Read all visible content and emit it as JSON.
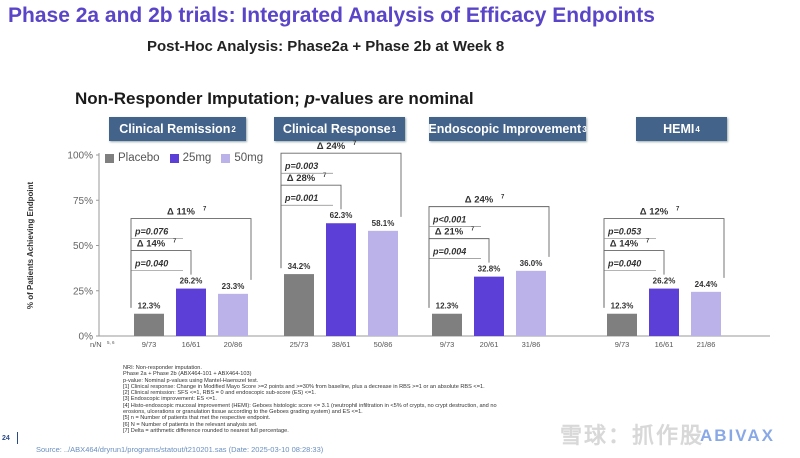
{
  "header": {
    "title": "Phase 2a and 2b trials: Integrated Analysis of Efficacy Endpoints",
    "subtitle": "Post-Hoc Analysis: Phase2a + Phase 2b at Week 8",
    "section_title_a": "Non-Responder Imputation; ",
    "section_title_p": "p",
    "section_title_b": "-values are nominal"
  },
  "endpoints": [
    {
      "label": "Clinical Remission",
      "sup": "2"
    },
    {
      "label": "Clinical Response",
      "sup": "1"
    },
    {
      "label": "Endoscopic Improvement",
      "sup": "3"
    },
    {
      "label": "HEMI",
      "sup": "4"
    }
  ],
  "legend": [
    "Placebo",
    "25mg",
    "50mg"
  ],
  "colors": {
    "Placebo": "#7f7f7f",
    "25mg": "#5b3fd6",
    "50mg": "#bcb2ea",
    "pill": "#44638a",
    "title": "#5a45c9"
  },
  "chart_data": {
    "type": "bar",
    "ylabel": "% of Patients Achieving Endpoint",
    "ylim": [
      0,
      100
    ],
    "yticks": [
      "0%",
      "25%",
      "50%",
      "75%",
      "100%"
    ],
    "n_axis_label": "n/N",
    "n_axis_sup": "5, 6",
    "groups": [
      {
        "name": "Clinical Remission",
        "bars": [
          {
            "series": "Placebo",
            "value": 12.3,
            "label": "12.3%",
            "n": "9/73"
          },
          {
            "series": "25mg",
            "value": 26.2,
            "label": "26.2%",
            "n": "16/61"
          },
          {
            "series": "50mg",
            "value": 23.3,
            "label": "23.3%",
            "n": "20/86"
          }
        ],
        "comparisons": [
          {
            "to": 1,
            "delta": "Δ 14%",
            "sup": "7",
            "p": "p=0.040"
          },
          {
            "to": 2,
            "delta": "Δ 11%",
            "sup": "7",
            "p": "p=0.076"
          }
        ]
      },
      {
        "name": "Clinical Response",
        "bars": [
          {
            "series": "Placebo",
            "value": 34.2,
            "label": "34.2%",
            "n": "25/73"
          },
          {
            "series": "25mg",
            "value": 62.3,
            "label": "62.3%",
            "n": "38/61"
          },
          {
            "series": "50mg",
            "value": 58.1,
            "label": "58.1%",
            "n": "50/86"
          }
        ],
        "comparisons": [
          {
            "to": 1,
            "delta": "Δ 28%",
            "sup": "7",
            "p": "p=0.001"
          },
          {
            "to": 2,
            "delta": "Δ 24%",
            "sup": "7",
            "p": "p=0.003"
          }
        ]
      },
      {
        "name": "Endoscopic Improvement",
        "bars": [
          {
            "series": "Placebo",
            "value": 12.3,
            "label": "12.3%",
            "n": "9/73"
          },
          {
            "series": "25mg",
            "value": 32.8,
            "label": "32.8%",
            "n": "20/61"
          },
          {
            "series": "50mg",
            "value": 36.0,
            "label": "36.0%",
            "n": "31/86"
          }
        ],
        "comparisons": [
          {
            "to": 1,
            "delta": "Δ 21%",
            "sup": "7",
            "p": "p=0.004"
          },
          {
            "to": 2,
            "delta": "Δ 24%",
            "sup": "7",
            "p": "p<0.001"
          }
        ]
      },
      {
        "name": "HEMI",
        "bars": [
          {
            "series": "Placebo",
            "value": 12.3,
            "label": "12.3%",
            "n": "9/73"
          },
          {
            "series": "25mg",
            "value": 26.2,
            "label": "26.2%",
            "n": "16/61"
          },
          {
            "series": "50mg",
            "value": 24.4,
            "label": "24.4%",
            "n": "21/86"
          }
        ],
        "comparisons": [
          {
            "to": 1,
            "delta": "Δ 14%",
            "sup": "7",
            "p": "p=0.040"
          },
          {
            "to": 2,
            "delta": "Δ 12%",
            "sup": "7",
            "p": "p=0.053"
          }
        ]
      }
    ]
  },
  "footnotes": [
    "NRI: Non-responder imputation.",
    "Phase 2a + Phase 2b (ABX464-101 + ABX464-103)",
    "p-value: Nominal p-values using Mantel-Haenszel test.",
    "[1]  Clinical response: Change in Modified Mayo Score >=2 points and >=30% from baseline, plus a decrease in RBS >=1 or an absolute RBS <=1.",
    "[2]  Clinical remission: SFS <=1, RBS = 0 and endoscopic sub-score (ES) <=1.",
    "[3]  Endoscopic improvement: ES <=1.",
    "[4]  Histo-endoscopic mucosal improvement (HEMI): Geboes histologic score <= 3.1 (neutrophil infiltration in <5% of crypts, no crypt destruction, and no",
    "erosions, ulcerations or granulation tissue according to the Geboes grading system) and ES <=1.",
    "[5] n = Number of patients that met the respective endpoint.",
    "[6] N = Number of patients in the relevant analysis set.",
    "[7] Delta = arithmetic difference rounded to nearest full percentage."
  ],
  "footer": {
    "page_number": "24",
    "source": "Source: ../ABX464/dryrun1/programs/statout/t210201.sas (Date: 2025-03-10 08:28:33)",
    "watermark": "雪球：抓作股",
    "logo": "ABIVAX"
  }
}
